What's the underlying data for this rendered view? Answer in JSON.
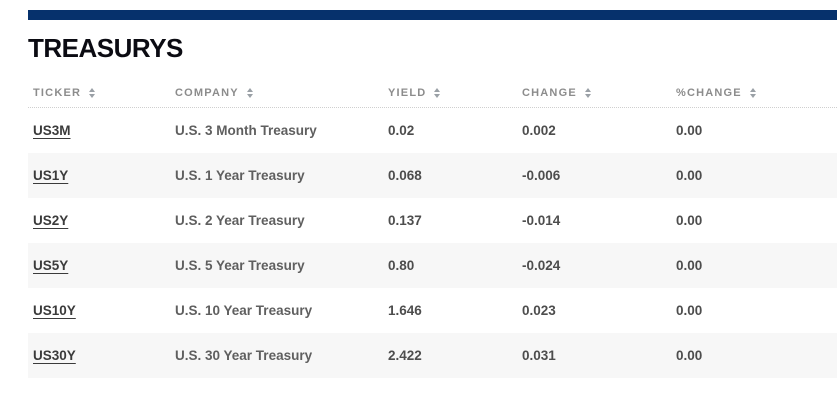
{
  "page": {
    "title": "TREASURYS",
    "accent_color": "#06316c"
  },
  "table": {
    "columns": [
      {
        "key": "ticker",
        "label": "TICKER",
        "sortable": true
      },
      {
        "key": "company",
        "label": "COMPANY",
        "sortable": true
      },
      {
        "key": "yield",
        "label": "YIELD",
        "sortable": true
      },
      {
        "key": "change",
        "label": "CHANGE",
        "sortable": true
      },
      {
        "key": "pct_change",
        "label": "%CHANGE",
        "sortable": true
      }
    ],
    "rows": [
      {
        "ticker": "US3M",
        "company": "U.S. 3 Month Treasury",
        "yield": "0.02",
        "change": "0.002",
        "pct_change": "0.00"
      },
      {
        "ticker": "US1Y",
        "company": "U.S. 1 Year Treasury",
        "yield": "0.068",
        "change": "-0.006",
        "pct_change": "0.00"
      },
      {
        "ticker": "US2Y",
        "company": "U.S. 2 Year Treasury",
        "yield": "0.137",
        "change": "-0.014",
        "pct_change": "0.00"
      },
      {
        "ticker": "US5Y",
        "company": "U.S. 5 Year Treasury",
        "yield": "0.80",
        "change": "-0.024",
        "pct_change": "0.00"
      },
      {
        "ticker": "US10Y",
        "company": "U.S. 10 Year Treasury",
        "yield": "1.646",
        "change": "0.023",
        "pct_change": "0.00"
      },
      {
        "ticker": "US30Y",
        "company": "U.S. 30 Year Treasury",
        "yield": "2.422",
        "change": "0.031",
        "pct_change": "0.00"
      }
    ]
  }
}
